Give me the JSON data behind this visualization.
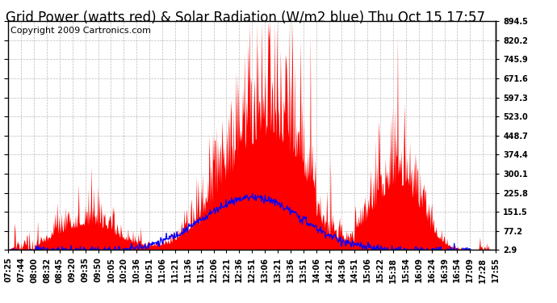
{
  "title": "Grid Power (watts red) & Solar Radiation (W/m2 blue) Thu Oct 15 17:57",
  "copyright": "Copyright 2009 Cartronics.com",
  "yticks": [
    2.9,
    77.2,
    151.5,
    225.8,
    300.1,
    374.4,
    448.7,
    523.0,
    597.3,
    671.6,
    745.9,
    820.2,
    894.5
  ],
  "ymin": 2.9,
  "ymax": 894.5,
  "xtick_labels": [
    "07:25",
    "07:44",
    "08:00",
    "08:32",
    "08:45",
    "09:20",
    "09:35",
    "09:50",
    "10:05",
    "10:20",
    "10:36",
    "10:51",
    "11:06",
    "11:21",
    "11:36",
    "11:51",
    "12:06",
    "12:21",
    "12:36",
    "12:51",
    "13:06",
    "13:21",
    "13:36",
    "13:51",
    "14:06",
    "14:21",
    "14:36",
    "14:51",
    "15:06",
    "15:22",
    "15:38",
    "15:54",
    "16:09",
    "16:24",
    "16:39",
    "16:54",
    "17:09",
    "17:28",
    "17:55"
  ],
  "bg_color": "#ffffff",
  "plot_bg_color": "#ffffff",
  "grid_color": "#aaaaaa",
  "red_color": "#ff0000",
  "blue_color": "#0000ff",
  "title_fontsize": 12,
  "copyright_fontsize": 8,
  "tick_fontsize": 7,
  "title_color": "#000000"
}
